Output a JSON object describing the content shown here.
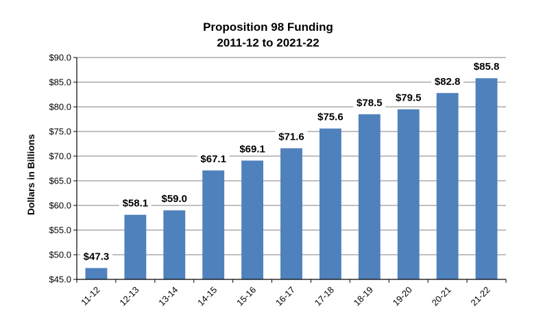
{
  "chart_data": {
    "type": "bar",
    "title": "Proposition 98 Funding",
    "subtitle": "2011-12 to 2021-22",
    "xlabel": "",
    "ylabel": "Dollars in Billions",
    "categories": [
      "11-12",
      "12-13",
      "13-14",
      "14-15",
      "15-16",
      "16-17",
      "17-18",
      "18-19",
      "19-20",
      "20-21",
      "21-22"
    ],
    "values": [
      47.3,
      58.1,
      59.0,
      67.1,
      69.1,
      71.6,
      75.6,
      78.5,
      79.5,
      82.8,
      85.8
    ],
    "data_labels": [
      "$47.3",
      "$58.1",
      "$59.0",
      "$67.1",
      "$69.1",
      "$71.6",
      "$75.6",
      "$78.5",
      "$79.5",
      "$82.8",
      "$85.8"
    ],
    "ylim": [
      45,
      90
    ],
    "yticks": [
      45,
      50,
      55,
      60,
      65,
      70,
      75,
      80,
      85,
      90
    ],
    "ytick_labels": [
      "$45.0",
      "$50.0",
      "$55.0",
      "$60.0",
      "$65.0",
      "$70.0",
      "$75.0",
      "$80.0",
      "$85.0",
      "$90.0"
    ],
    "grid": true,
    "legend": "none",
    "colors": {
      "bar": "#4f81bd",
      "grid": "#7f7f7f",
      "axis": "#000000"
    }
  }
}
